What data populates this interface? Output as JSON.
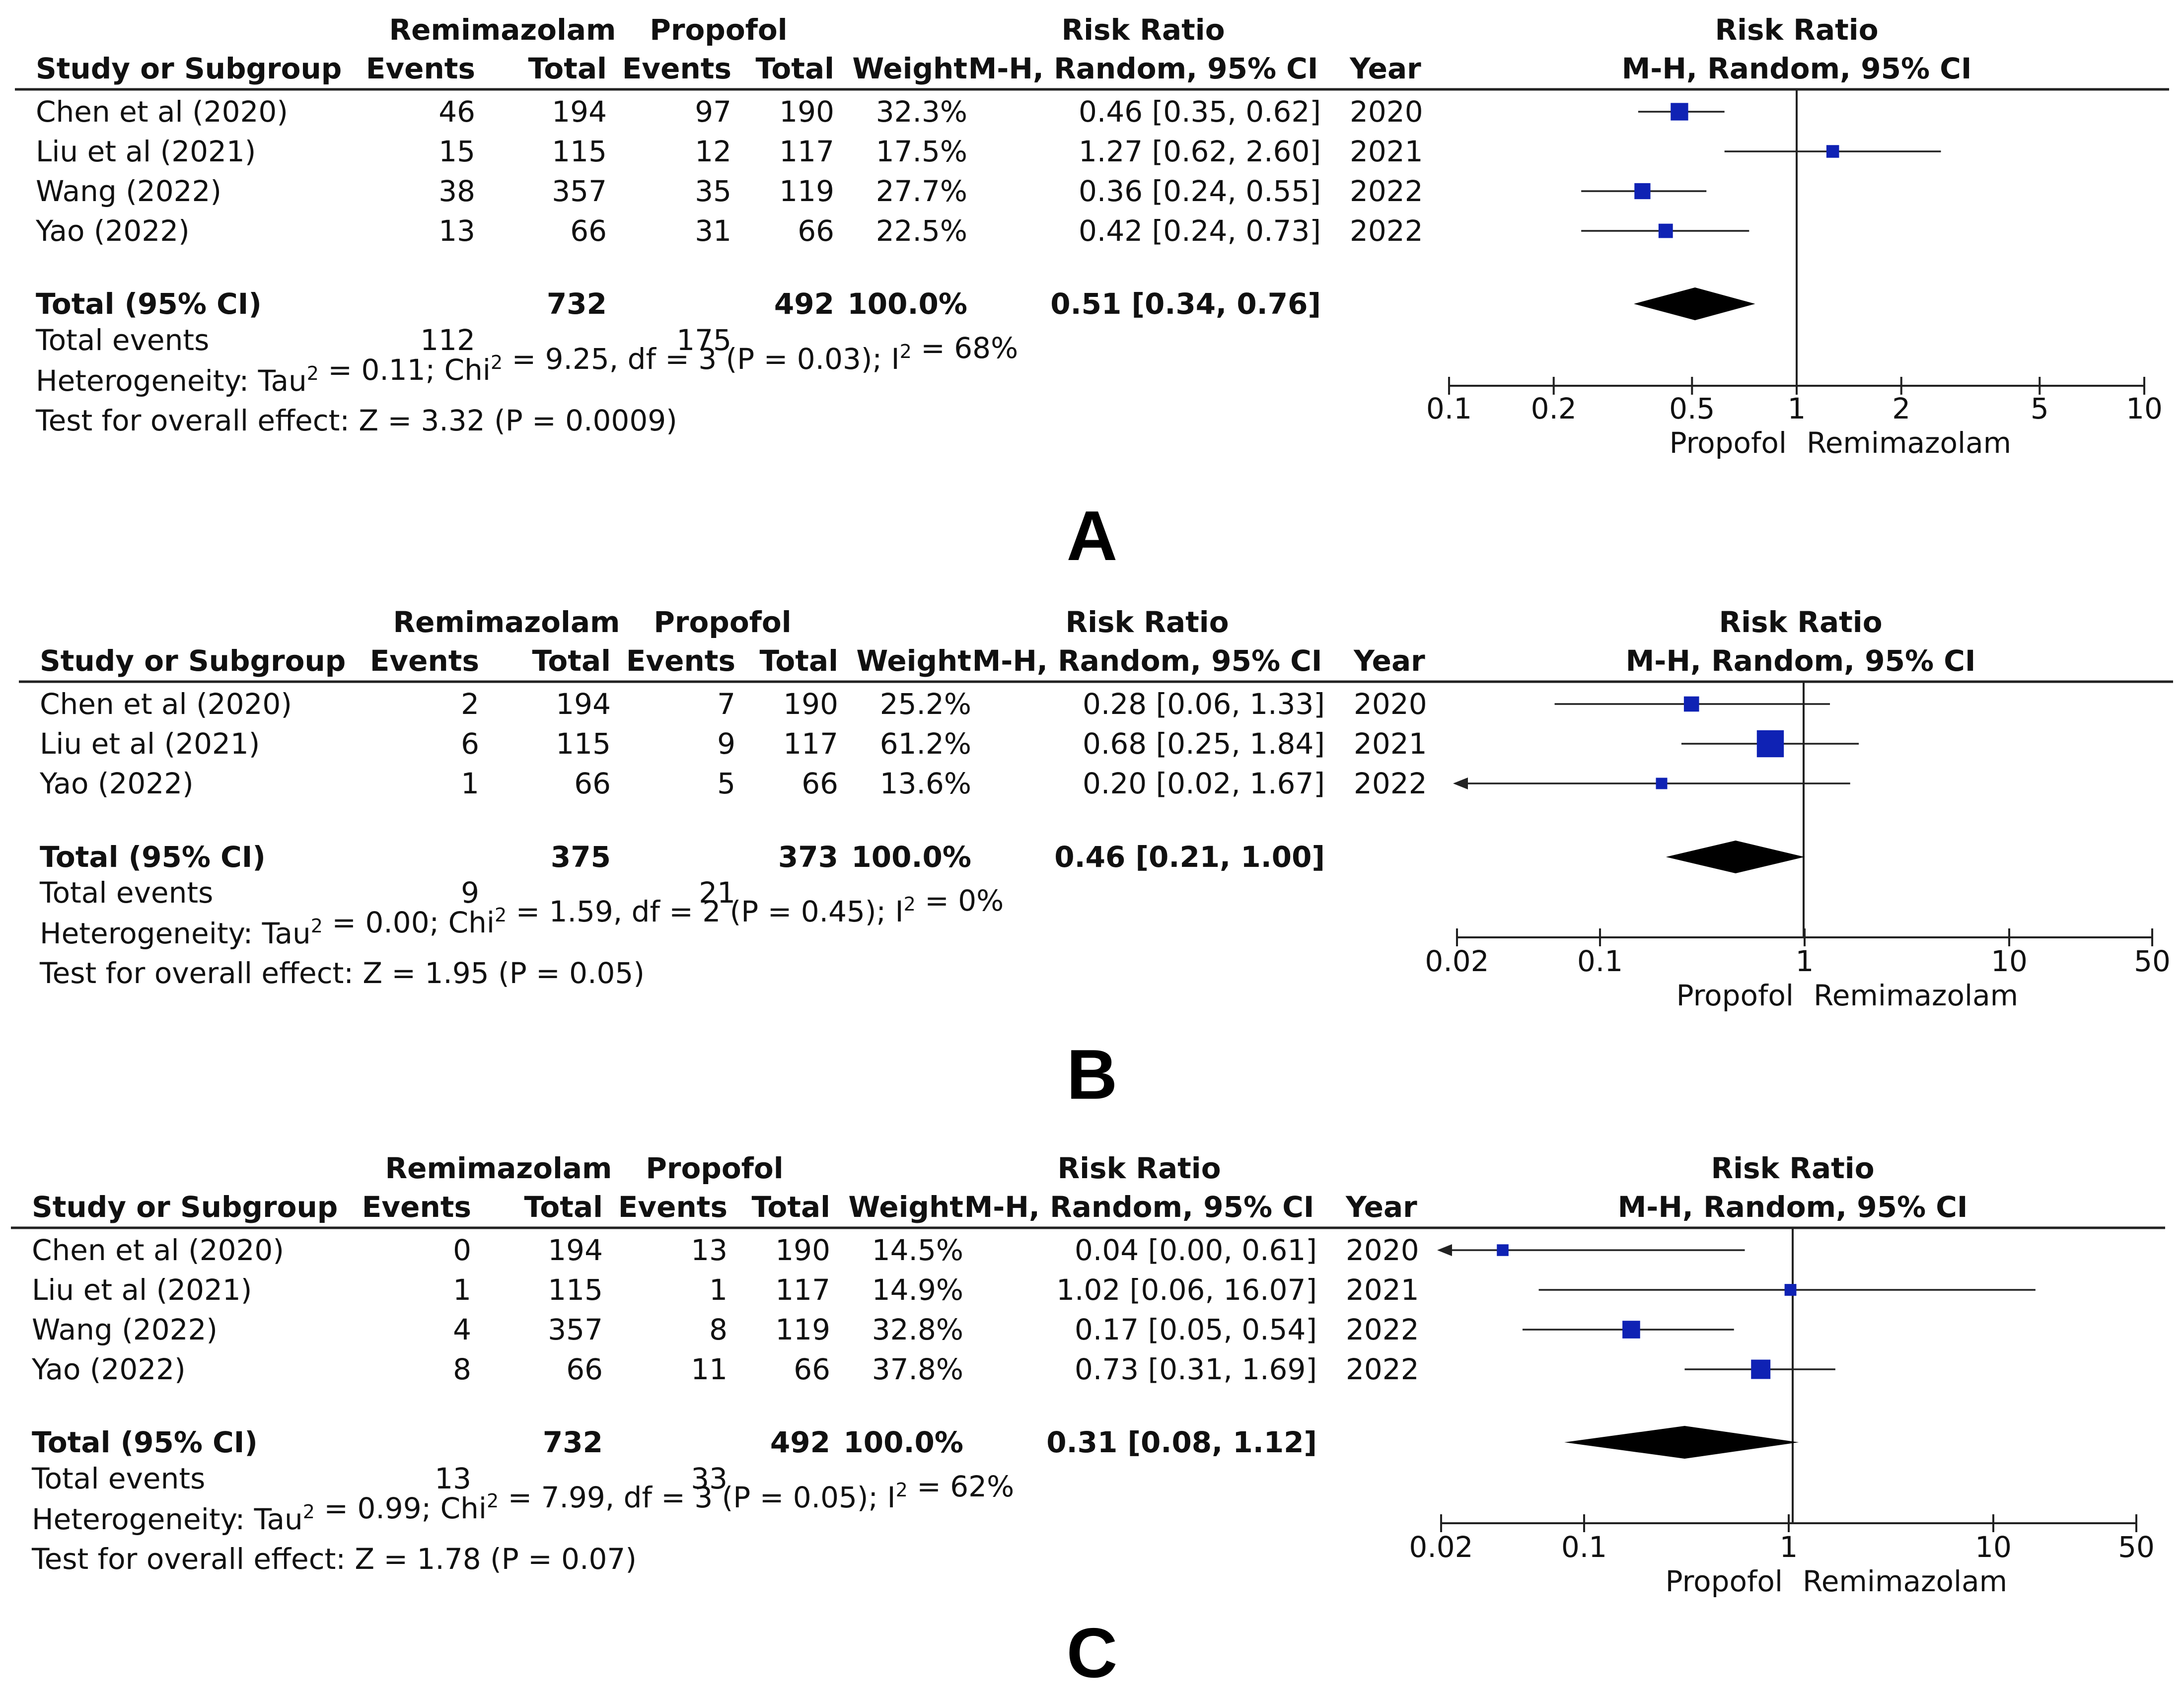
{
  "chart_data": [
    {
      "type": "forest",
      "panel_label": "A",
      "group1": "Remimazolam",
      "group2": "Propofol",
      "header": {
        "study": "Study or Subgroup",
        "events": "Events",
        "total": "Total",
        "weight": "Weight",
        "rr": "Risk Ratio",
        "method": "M-H, Random, 95% CI",
        "year": "Year"
      },
      "studies": [
        {
          "name": "Chen et al (2020)",
          "e1": "46",
          "t1": "194",
          "e2": "97",
          "t2": "190",
          "weight": "32.3%",
          "ci_text": "0.46 [0.35, 0.62]",
          "year": "2020",
          "rr": 0.46,
          "lo": 0.35,
          "hi": 0.62,
          "w": 32.3
        },
        {
          "name": "Liu et al (2021)",
          "e1": "15",
          "t1": "115",
          "e2": "12",
          "t2": "117",
          "weight": "17.5%",
          "ci_text": "1.27 [0.62, 2.60]",
          "year": "2021",
          "rr": 1.27,
          "lo": 0.62,
          "hi": 2.6,
          "w": 17.5
        },
        {
          "name": "Wang (2022)",
          "e1": "38",
          "t1": "357",
          "e2": "35",
          "t2": "119",
          "weight": "27.7%",
          "ci_text": "0.36 [0.24, 0.55]",
          "year": "2022",
          "rr": 0.36,
          "lo": 0.24,
          "hi": 0.55,
          "w": 27.7
        },
        {
          "name": "Yao (2022)",
          "e1": "13",
          "t1": "66",
          "e2": "31",
          "t2": "66",
          "weight": "22.5%",
          "ci_text": "0.42 [0.24, 0.73]",
          "year": "2022",
          "rr": 0.42,
          "lo": 0.24,
          "hi": 0.73,
          "w": 22.5
        }
      ],
      "total": {
        "label": "Total (95% CI)",
        "t1": "732",
        "t2": "492",
        "weight": "100.0%",
        "ci_text": "0.51 [0.34, 0.76]",
        "rr": 0.51,
        "lo": 0.34,
        "hi": 0.76
      },
      "events": {
        "label": "Total events",
        "e1": "112",
        "e2": "175"
      },
      "heterogeneity": {
        "prefix": "Heterogeneity: Tau",
        "tau2": " = 0.11; Chi",
        "chi2": " = 9.25, df = 3 (P = 0.03); I",
        "i2": " = 68%"
      },
      "overall": "Test for overall effect: Z = 3.32 (P = 0.0009)",
      "xaxis": {
        "scale": "log",
        "min": 0.1,
        "max": 10,
        "ticks": [
          0.1,
          0.2,
          0.5,
          1,
          2,
          5,
          10
        ],
        "tick_labels": [
          "0.1",
          "0.2",
          "0.5",
          "1",
          "2",
          "5",
          "10"
        ],
        "left_label": "Propofol",
        "right_label": "Remimazolam"
      }
    },
    {
      "type": "forest",
      "panel_label": "B",
      "group1": "Remimazolam",
      "group2": "Propofol",
      "header": {
        "study": "Study or Subgroup",
        "events": "Events",
        "total": "Total",
        "weight": "Weight",
        "rr": "Risk Ratio",
        "method": "M-H, Random, 95% CI",
        "year": "Year"
      },
      "studies": [
        {
          "name": "Chen et al (2020)",
          "e1": "2",
          "t1": "194",
          "e2": "7",
          "t2": "190",
          "weight": "25.2%",
          "ci_text": "0.28 [0.06, 1.33]",
          "year": "2020",
          "rr": 0.28,
          "lo": 0.06,
          "hi": 1.33,
          "w": 25.2
        },
        {
          "name": "Liu et al (2021)",
          "e1": "6",
          "t1": "115",
          "e2": "9",
          "t2": "117",
          "weight": "61.2%",
          "ci_text": "0.68 [0.25, 1.84]",
          "year": "2021",
          "rr": 0.68,
          "lo": 0.25,
          "hi": 1.84,
          "w": 61.2
        },
        {
          "name": "Yao (2022)",
          "e1": "1",
          "t1": "66",
          "e2": "5",
          "t2": "66",
          "weight": "13.6%",
          "ci_text": "0.20 [0.02, 1.67]",
          "year": "2022",
          "rr": 0.2,
          "lo": 0.02,
          "hi": 1.67,
          "w": 13.6
        }
      ],
      "total": {
        "label": "Total (95% CI)",
        "t1": "375",
        "t2": "373",
        "weight": "100.0%",
        "ci_text": "0.46 [0.21, 1.00]",
        "rr": 0.46,
        "lo": 0.21,
        "hi": 1.0
      },
      "events": {
        "label": "Total events",
        "e1": "9",
        "e2": "21"
      },
      "heterogeneity": {
        "prefix": "Heterogeneity: Tau",
        "tau2": " = 0.00; Chi",
        "chi2": " = 1.59, df = 2 (P = 0.45); I",
        "i2": " = 0%"
      },
      "overall": "Test for overall effect: Z = 1.95 (P = 0.05)",
      "xaxis": {
        "scale": "log",
        "min": 0.02,
        "max": 50,
        "ticks": [
          0.02,
          0.1,
          1,
          10,
          50
        ],
        "tick_labels": [
          "0.02",
          "0.1",
          "1",
          "10",
          "50"
        ],
        "left_label": "Propofol",
        "right_label": "Remimazolam"
      }
    },
    {
      "type": "forest",
      "panel_label": "C",
      "group1": "Remimazolam",
      "group2": "Propofol",
      "header": {
        "study": "Study or Subgroup",
        "events": "Events",
        "total": "Total",
        "weight": "Weight",
        "rr": "Risk Ratio",
        "method": "M-H, Random, 95% CI",
        "year": "Year"
      },
      "studies": [
        {
          "name": "Chen et al (2020)",
          "e1": "0",
          "t1": "194",
          "e2": "13",
          "t2": "190",
          "weight": "14.5%",
          "ci_text": "0.04 [0.00, 0.61]",
          "year": "2020",
          "rr": 0.04,
          "lo": 0.0,
          "hi": 0.61,
          "w": 14.5
        },
        {
          "name": "Liu et al (2021)",
          "e1": "1",
          "t1": "115",
          "e2": "1",
          "t2": "117",
          "weight": "14.9%",
          "ci_text": "1.02 [0.06, 16.07]",
          "year": "2021",
          "rr": 1.02,
          "lo": 0.06,
          "hi": 16.07,
          "w": 14.9
        },
        {
          "name": "Wang (2022)",
          "e1": "4",
          "t1": "357",
          "e2": "8",
          "t2": "119",
          "weight": "32.8%",
          "ci_text": "0.17 [0.05, 0.54]",
          "year": "2022",
          "rr": 0.17,
          "lo": 0.05,
          "hi": 0.54,
          "w": 32.8
        },
        {
          "name": "Yao (2022)",
          "e1": "8",
          "t1": "66",
          "e2": "11",
          "t2": "66",
          "weight": "37.8%",
          "ci_text": "0.73 [0.31, 1.69]",
          "year": "2022",
          "rr": 0.73,
          "lo": 0.31,
          "hi": 1.69,
          "w": 37.8
        }
      ],
      "total": {
        "label": "Total (95% CI)",
        "t1": "732",
        "t2": "492",
        "weight": "100.0%",
        "ci_text": "0.31 [0.08, 1.12]",
        "rr": 0.31,
        "lo": 0.08,
        "hi": 1.12
      },
      "events": {
        "label": "Total events",
        "e1": "13",
        "e2": "33"
      },
      "heterogeneity": {
        "prefix": "Heterogeneity: Tau",
        "tau2": " = 0.99; Chi",
        "chi2": " = 7.99, df = 3 (P = 0.05); I",
        "i2": " = 62%"
      },
      "overall": "Test for overall effect: Z = 1.78 (P = 0.07)",
      "xaxis": {
        "scale": "log",
        "min": 0.02,
        "max": 50,
        "ticks": [
          0.02,
          0.1,
          1,
          10,
          50
        ],
        "tick_labels": [
          "0.02",
          "0.1",
          "1",
          "10",
          "50"
        ],
        "left_label": "Propofol",
        "right_label": "Remimazolam"
      }
    }
  ],
  "colors": {
    "marker": "#0f22b4",
    "diamond": "#000000",
    "line": "#222222"
  }
}
